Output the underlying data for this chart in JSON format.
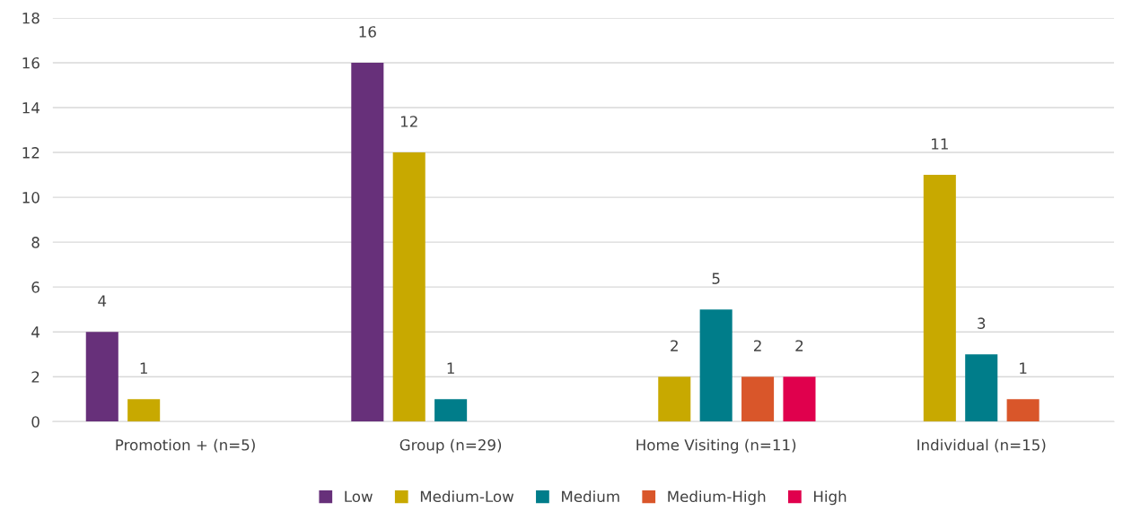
{
  "chart_data": {
    "type": "bar",
    "categories": [
      "Promotion + (n=5)",
      "Group (n=29)",
      "Home Visiting (n=11)",
      "Individual (n=15)"
    ],
    "series": [
      {
        "name": "Low",
        "color": "#67307a",
        "values": [
          4,
          16,
          null,
          null
        ]
      },
      {
        "name": "Medium-Low",
        "color": "#c8a900",
        "values": [
          1,
          12,
          2,
          11
        ]
      },
      {
        "name": "Medium",
        "color": "#007d8a",
        "values": [
          null,
          1,
          5,
          3
        ]
      },
      {
        "name": "Medium-High",
        "color": "#d9562a",
        "values": [
          null,
          null,
          2,
          1
        ]
      },
      {
        "name": "High",
        "color": "#e0004d",
        "values": [
          null,
          null,
          2,
          null
        ]
      }
    ],
    "ylim": [
      0,
      18
    ],
    "yticks": [
      0,
      2,
      4,
      6,
      8,
      10,
      12,
      14,
      16,
      18
    ],
    "grid": "y",
    "legend": "bottom",
    "data_labels": true
  }
}
